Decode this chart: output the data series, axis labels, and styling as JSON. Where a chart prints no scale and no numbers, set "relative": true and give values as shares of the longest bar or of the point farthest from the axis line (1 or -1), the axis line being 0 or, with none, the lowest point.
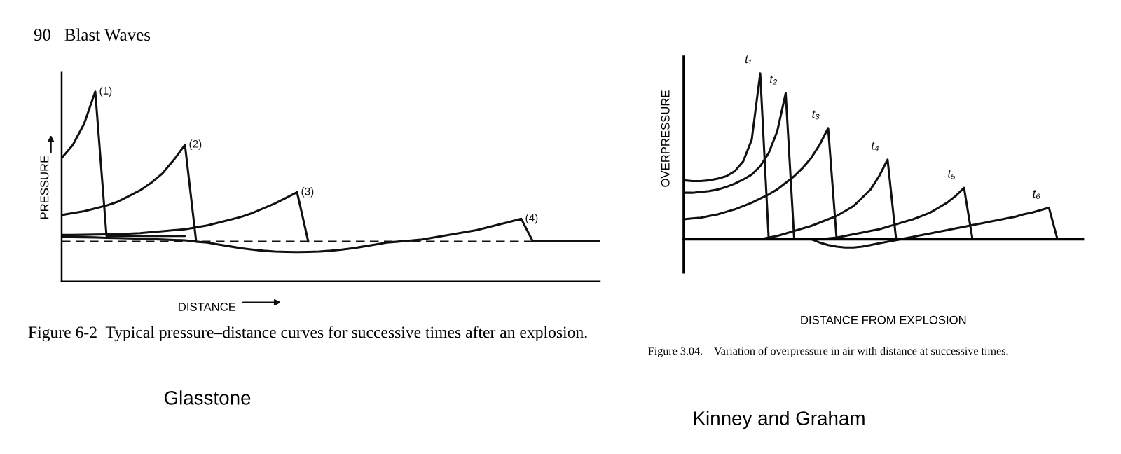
{
  "chart_data": [
    {
      "type": "line",
      "relative": true,
      "grid": false,
      "legend": false,
      "marker": "none",
      "line_style": "solid",
      "xlabel": "DISTANCE",
      "ylabel": "PRESSURE",
      "annotations": [
        "90   Blast Waves",
        "Figure 6-2  Typical pressure–distance curves for successive times after an explosion.",
        "Glasstone"
      ],
      "categories": [
        null,
        null,
        null,
        null,
        null,
        null,
        null,
        null,
        null,
        null,
        null,
        null,
        null,
        null,
        null,
        null,
        null,
        null,
        null,
        null,
        null,
        null,
        null,
        null,
        null,
        null,
        null,
        null,
        null,
        null,
        null,
        null,
        null,
        null,
        null,
        null,
        null,
        null,
        null,
        null,
        null,
        null,
        null,
        null,
        null,
        null,
        null,
        null,
        null
      ],
      "ref_lines": [
        {
          "axis": "y",
          "value": 0.21,
          "color": "#111111",
          "line_style": "dashed"
        }
      ],
      "series": [
        {
          "name": "(1)",
          "color": "#111111",
          "values": [
            0.65,
            0.72,
            0.83,
            1.0,
            0.24,
            0.24,
            0.24,
            0.24,
            0.24,
            0.24,
            0.24,
            0.24,
            null,
            null,
            null,
            null,
            null,
            null,
            null,
            null,
            null,
            null,
            null,
            null,
            null,
            null,
            null,
            null,
            null,
            null,
            null,
            null,
            null,
            null,
            null,
            null,
            null,
            null,
            null,
            null,
            null,
            null,
            null,
            null,
            null,
            null,
            null,
            null,
            null
          ]
        },
        {
          "name": "(2)",
          "color": "#111111",
          "values": [
            0.35,
            0.36,
            0.37,
            0.385,
            0.4,
            0.42,
            0.45,
            0.48,
            0.52,
            0.57,
            0.64,
            0.72,
            0.21,
            null,
            null,
            null,
            null,
            null,
            null,
            null,
            null,
            null,
            null,
            null,
            null,
            null,
            null,
            null,
            null,
            null,
            null,
            null,
            null,
            null,
            null,
            null,
            null,
            null,
            null,
            null,
            null,
            null,
            null,
            null,
            null,
            null,
            null,
            null,
            null
          ]
        },
        {
          "name": "(3)",
          "color": "#111111",
          "values": [
            0.245,
            0.245,
            0.246,
            0.247,
            0.248,
            0.25,
            0.252,
            0.255,
            0.26,
            0.265,
            0.27,
            0.275,
            0.285,
            0.295,
            0.31,
            0.325,
            0.34,
            0.36,
            0.385,
            0.41,
            0.44,
            0.47,
            0.21,
            null,
            null,
            null,
            null,
            null,
            null,
            null,
            null,
            null,
            null,
            null,
            null,
            null,
            null,
            null,
            null,
            null,
            null,
            null,
            null,
            null,
            null,
            null,
            null,
            null,
            null
          ]
        },
        {
          "name": "(4)",
          "color": "#111111",
          "values": [
            0.235,
            0.234,
            0.233,
            0.232,
            0.23,
            0.229,
            0.227,
            0.225,
            0.223,
            0.221,
            0.219,
            0.217,
            0.21,
            0.205,
            0.195,
            0.185,
            0.175,
            0.168,
            0.162,
            0.158,
            0.156,
            0.155,
            0.156,
            0.158,
            0.162,
            0.168,
            0.175,
            0.185,
            0.195,
            0.205,
            0.21,
            0.215,
            0.22,
            0.23,
            0.24,
            0.25,
            0.26,
            0.27,
            0.285,
            0.3,
            0.315,
            0.33,
            0.215,
            0.215,
            0.215,
            0.215,
            0.215,
            0.215,
            0.215
          ]
        }
      ]
    },
    {
      "type": "line",
      "relative": true,
      "grid": false,
      "legend": false,
      "marker": "none",
      "line_style": "solid",
      "xlabel": "DISTANCE FROM EXPLOSION",
      "ylabel": "OVERPRESSURE",
      "annotations": [
        "Figure 3.04.    Variation of overpressure in air with distance at successive times.",
        "Kinney and Graham"
      ],
      "categories": [
        null,
        null,
        null,
        null,
        null,
        null,
        null,
        null,
        null,
        null,
        null,
        null,
        null,
        null,
        null,
        null,
        null,
        null,
        null,
        null,
        null,
        null,
        null,
        null,
        null,
        null,
        null,
        null,
        null,
        null,
        null,
        null,
        null,
        null,
        null,
        null,
        null,
        null,
        null,
        null,
        null,
        null,
        null,
        null,
        null,
        null,
        null,
        null
      ],
      "series": [
        {
          "name": "t₁",
          "color": "#111111",
          "values": [
            0.355,
            0.35,
            0.35,
            0.355,
            0.365,
            0.38,
            0.41,
            0.47,
            0.6,
            1.0,
            0,
            null,
            null,
            null,
            null,
            null,
            null,
            null,
            null,
            null,
            null,
            null,
            null,
            null,
            null,
            null,
            null,
            null,
            null,
            null,
            null,
            null,
            null,
            null,
            null,
            null,
            null,
            null,
            null,
            null,
            null,
            null,
            null,
            null,
            null,
            null,
            null,
            null
          ]
        },
        {
          "name": "t₂",
          "color": "#111111",
          "values": [
            0.28,
            0.28,
            0.285,
            0.29,
            0.3,
            0.315,
            0.335,
            0.36,
            0.39,
            0.44,
            0.52,
            0.65,
            0.88,
            0,
            null,
            null,
            null,
            null,
            null,
            null,
            null,
            null,
            null,
            null,
            null,
            null,
            null,
            null,
            null,
            null,
            null,
            null,
            null,
            null,
            null,
            null,
            null,
            null,
            null,
            null,
            null,
            null,
            null,
            null,
            null,
            null,
            null,
            null
          ]
        },
        {
          "name": "t₃",
          "color": "#111111",
          "values": [
            0.12,
            0.125,
            0.13,
            0.14,
            0.15,
            0.165,
            0.18,
            0.2,
            0.22,
            0.245,
            0.27,
            0.3,
            0.34,
            0.38,
            0.43,
            0.49,
            0.57,
            0.67,
            0,
            null,
            null,
            null,
            null,
            null,
            null,
            null,
            null,
            null,
            null,
            null,
            null,
            null,
            null,
            null,
            null,
            null,
            null,
            null,
            null,
            null,
            null,
            null,
            null,
            null,
            null,
            null,
            null,
            null
          ]
        },
        {
          "name": "t₄",
          "color": "#111111",
          "values": [
            null,
            null,
            null,
            null,
            null,
            null,
            null,
            null,
            null,
            0,
            0.01,
            0.02,
            0.035,
            0.05,
            0.065,
            0.08,
            0.1,
            0.12,
            0.14,
            0.17,
            0.2,
            0.25,
            0.3,
            0.38,
            0.48,
            0,
            null,
            null,
            null,
            null,
            null,
            null,
            null,
            null,
            null,
            null,
            null,
            null,
            null,
            null,
            null,
            null,
            null,
            null,
            null,
            null,
            null,
            null
          ]
        },
        {
          "name": "t₅",
          "color": "#111111",
          "values": [
            null,
            null,
            null,
            null,
            null,
            null,
            null,
            null,
            null,
            null,
            null,
            null,
            null,
            null,
            null,
            null,
            0,
            0.005,
            0.01,
            0.02,
            0.03,
            0.04,
            0.05,
            0.06,
            0.075,
            0.09,
            0.105,
            0.12,
            0.14,
            0.16,
            0.19,
            0.22,
            0.26,
            0.31,
            0,
            null,
            null,
            null,
            null,
            null,
            null,
            null,
            null,
            null,
            null,
            null,
            null,
            null
          ]
        },
        {
          "name": "t₆",
          "color": "#111111",
          "values": [
            null,
            null,
            null,
            null,
            null,
            null,
            null,
            null,
            null,
            null,
            null,
            null,
            null,
            null,
            null,
            0,
            -0.02,
            -0.035,
            -0.045,
            -0.05,
            -0.05,
            -0.045,
            -0.035,
            -0.025,
            -0.015,
            -0.005,
            0.005,
            0.015,
            0.025,
            0.035,
            0.045,
            0.055,
            0.065,
            0.075,
            0.085,
            0.095,
            0.105,
            0.115,
            0.125,
            0.135,
            0.15,
            0.16,
            0.175,
            0.19,
            0,
            0,
            0,
            0
          ]
        }
      ]
    }
  ]
}
